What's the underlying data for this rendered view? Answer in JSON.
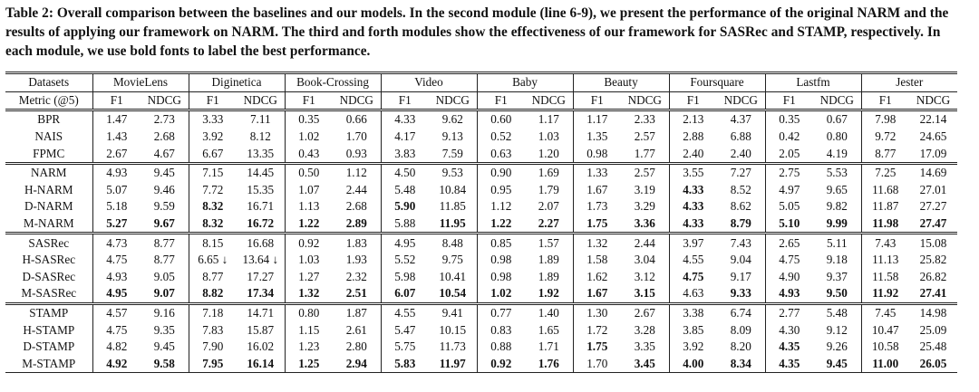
{
  "caption": "Table 2: Overall comparison between the baselines and our models. In the second module (line 6-9), we present the performance of the original NARM and the results of applying our framework on NARM. The third and forth modules show the effectiveness of our framework for SASRec and STAMP, respectively. In each module, we use bold fonts to label the best performance.",
  "table": {
    "header": [
      "Datasets",
      "MovieLens",
      "Diginetica",
      "Book-Crossing",
      "Video",
      "Baby",
      "Beauty",
      "Foursquare",
      "Lastfm",
      "Jester"
    ],
    "metric_row": [
      "Metric (@5)",
      "F1",
      "NDCG",
      "F1",
      "NDCG",
      "F1",
      "NDCG",
      "F1",
      "NDCG",
      "F1",
      "NDCG",
      "F1",
      "NDCG",
      "F1",
      "NDCG",
      "F1",
      "NDCG",
      "F1",
      "NDCG"
    ],
    "modules": [
      {
        "rows": [
          {
            "cells": [
              "BPR",
              "1.47",
              "2.73",
              "3.33",
              "7.11",
              "0.35",
              "0.66",
              "4.33",
              "9.62",
              "0.60",
              "1.17",
              "1.17",
              "2.33",
              "2.13",
              "4.37",
              "0.35",
              "0.67",
              "7.98",
              "22.14"
            ],
            "bold": []
          },
          {
            "cells": [
              "NAIS",
              "1.43",
              "2.68",
              "3.92",
              "8.12",
              "1.02",
              "1.70",
              "4.17",
              "9.13",
              "0.52",
              "1.03",
              "1.35",
              "2.57",
              "2.88",
              "6.88",
              "0.42",
              "0.80",
              "9.72",
              "24.65"
            ],
            "bold": []
          },
          {
            "cells": [
              "FPMC",
              "2.67",
              "4.67",
              "6.67",
              "13.35",
              "0.43",
              "0.93",
              "3.83",
              "7.59",
              "0.63",
              "1.20",
              "0.98",
              "1.77",
              "2.40",
              "2.40",
              "2.05",
              "4.19",
              "8.77",
              "17.09"
            ],
            "bold": []
          }
        ]
      },
      {
        "rows": [
          {
            "cells": [
              "NARM",
              "4.93",
              "9.45",
              "7.15",
              "14.45",
              "0.50",
              "1.12",
              "4.50",
              "9.53",
              "0.90",
              "1.69",
              "1.33",
              "2.57",
              "3.55",
              "7.27",
              "2.75",
              "5.53",
              "7.25",
              "14.69"
            ],
            "bold": []
          },
          {
            "cells": [
              "H-NARM",
              "5.07",
              "9.46",
              "7.72",
              "15.35",
              "1.07",
              "2.44",
              "5.48",
              "10.84",
              "0.95",
              "1.79",
              "1.67",
              "3.19",
              "4.33",
              "8.52",
              "4.97",
              "9.65",
              "11.68",
              "27.01"
            ],
            "bold": [
              13
            ]
          },
          {
            "cells": [
              "D-NARM",
              "5.18",
              "9.59",
              "8.32",
              "16.71",
              "1.13",
              "2.68",
              "5.90",
              "11.85",
              "1.12",
              "2.07",
              "1.73",
              "3.29",
              "4.33",
              "8.62",
              "5.05",
              "9.82",
              "11.87",
              "27.27"
            ],
            "bold": [
              3,
              7,
              13
            ]
          },
          {
            "cells": [
              "M-NARM",
              "5.27",
              "9.67",
              "8.32",
              "16.72",
              "1.22",
              "2.89",
              "5.88",
              "11.95",
              "1.22",
              "2.27",
              "1.75",
              "3.36",
              "4.33",
              "8.79",
              "5.10",
              "9.99",
              "11.98",
              "27.47"
            ],
            "bold": [
              1,
              2,
              3,
              4,
              5,
              6,
              8,
              9,
              10,
              11,
              12,
              13,
              14,
              15,
              16,
              17,
              18
            ]
          }
        ]
      },
      {
        "rows": [
          {
            "cells": [
              "SASRec",
              "4.73",
              "8.77",
              "8.15",
              "16.68",
              "0.92",
              "1.83",
              "4.95",
              "8.48",
              "0.85",
              "1.57",
              "1.32",
              "2.44",
              "3.97",
              "7.43",
              "2.65",
              "5.11",
              "7.43",
              "15.08"
            ],
            "bold": []
          },
          {
            "cells": [
              "H-SASRec",
              "4.75",
              "8.77",
              "6.65 ↓",
              "13.64 ↓",
              "1.03",
              "1.93",
              "5.52",
              "9.75",
              "0.98",
              "1.89",
              "1.58",
              "3.04",
              "4.55",
              "9.04",
              "4.75",
              "9.18",
              "11.13",
              "25.82"
            ],
            "bold": []
          },
          {
            "cells": [
              "D-SASRec",
              "4.93",
              "9.05",
              "8.77",
              "17.27",
              "1.27",
              "2.32",
              "5.98",
              "10.41",
              "0.98",
              "1.89",
              "1.62",
              "3.12",
              "4.75",
              "9.17",
              "4.90",
              "9.37",
              "11.58",
              "26.82"
            ],
            "bold": [
              13
            ]
          },
          {
            "cells": [
              "M-SASRec",
              "4.95",
              "9.07",
              "8.82",
              "17.34",
              "1.32",
              "2.51",
              "6.07",
              "10.54",
              "1.02",
              "1.92",
              "1.67",
              "3.15",
              "4.63",
              "9.33",
              "4.93",
              "9.50",
              "11.92",
              "27.41"
            ],
            "bold": [
              1,
              2,
              3,
              4,
              5,
              6,
              7,
              8,
              9,
              10,
              11,
              12,
              14,
              15,
              16,
              17,
              18
            ]
          }
        ]
      },
      {
        "rows": [
          {
            "cells": [
              "STAMP",
              "4.57",
              "9.16",
              "7.18",
              "14.71",
              "0.80",
              "1.87",
              "4.55",
              "9.41",
              "0.77",
              "1.40",
              "1.30",
              "2.67",
              "3.38",
              "6.74",
              "2.77",
              "5.48",
              "7.45",
              "14.98"
            ],
            "bold": []
          },
          {
            "cells": [
              "H-STAMP",
              "4.75",
              "9.35",
              "7.83",
              "15.87",
              "1.15",
              "2.61",
              "5.47",
              "10.15",
              "0.83",
              "1.65",
              "1.72",
              "3.28",
              "3.85",
              "8.09",
              "4.30",
              "9.12",
              "10.47",
              "25.09"
            ],
            "bold": []
          },
          {
            "cells": [
              "D-STAMP",
              "4.82",
              "9.45",
              "7.90",
              "16.02",
              "1.23",
              "2.80",
              "5.75",
              "11.73",
              "0.88",
              "1.71",
              "1.75",
              "3.35",
              "3.92",
              "8.20",
              "4.35",
              "9.26",
              "10.58",
              "25.48"
            ],
            "bold": [
              11,
              15
            ]
          },
          {
            "cells": [
              "M-STAMP",
              "4.92",
              "9.58",
              "7.95",
              "16.14",
              "1.25",
              "2.94",
              "5.83",
              "11.97",
              "0.92",
              "1.76",
              "1.70",
              "3.45",
              "4.00",
              "8.34",
              "4.35",
              "9.45",
              "11.00",
              "26.05"
            ],
            "bold": [
              1,
              2,
              3,
              4,
              5,
              6,
              7,
              8,
              9,
              10,
              12,
              13,
              14,
              15,
              16,
              17,
              18
            ]
          }
        ]
      }
    ]
  }
}
